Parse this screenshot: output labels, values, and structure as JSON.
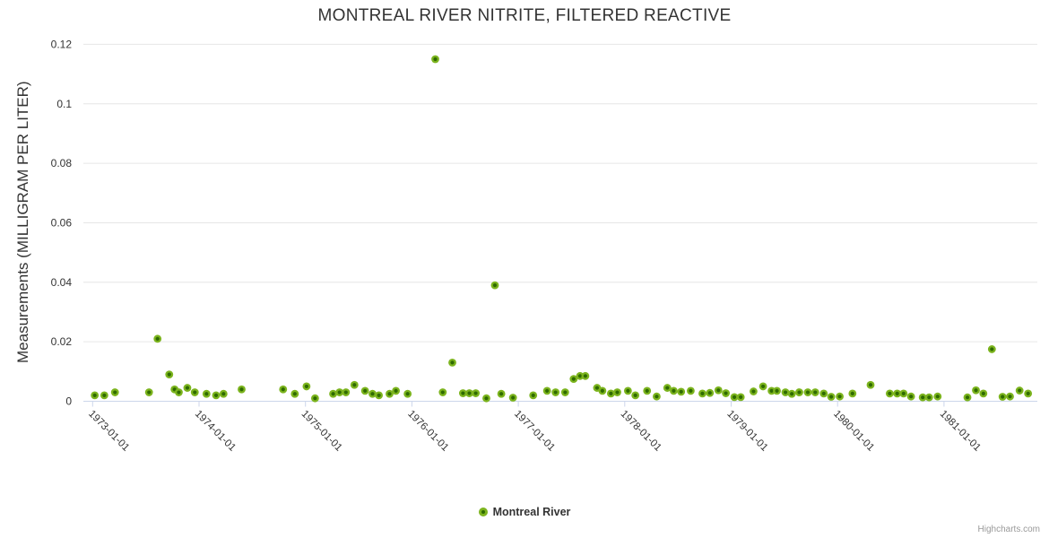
{
  "credit": "Highcharts.com",
  "colors": {
    "point": "#7CB41E",
    "point_center": "#2F6B00",
    "grid": "#E6E6E6",
    "axis": "#CCD6EB",
    "label_text": "#333333",
    "credit_text": "#999999",
    "background": "#FFFFFF"
  },
  "chart_data": {
    "type": "scatter",
    "title": "MONTREAL RIVER NITRITE, FILTERED REACTIVE",
    "xlabel": "",
    "ylabel": "Measurements (MILLIGRAM PER LITER)",
    "grid": "horizontal",
    "legend_position": "bottom-center",
    "x_encoding": "decimal-year",
    "xlim": [
      1972.9,
      1981.9
    ],
    "ylim": [
      0,
      0.12
    ],
    "x_axis": {
      "tick_labels": [
        "1973-01-01",
        "1974-01-01",
        "1975-01-01",
        "1976-01-01",
        "1977-01-01",
        "1978-01-01",
        "1979-01-01",
        "1980-01-01",
        "1981-01-01"
      ],
      "tick_years": [
        1973,
        1974,
        1975,
        1976,
        1977,
        1978,
        1979,
        1980,
        1981
      ],
      "label_rotation_deg": 45
    },
    "y_axis": {
      "ticks": [
        0,
        0.02,
        0.04,
        0.06,
        0.08,
        0.1,
        0.12
      ],
      "tick_labels": [
        "0",
        "0.02",
        "0.04",
        "0.06",
        "0.08",
        "0.1",
        "0.12"
      ]
    },
    "series": [
      {
        "name": "Montreal River",
        "points": [
          [
            1973.02,
            0.002
          ],
          [
            1973.11,
            0.002
          ],
          [
            1973.21,
            0.003
          ],
          [
            1973.53,
            0.003
          ],
          [
            1973.61,
            0.021
          ],
          [
            1973.72,
            0.009
          ],
          [
            1973.77,
            0.004
          ],
          [
            1973.81,
            0.003
          ],
          [
            1973.89,
            0.0045
          ],
          [
            1973.96,
            0.003
          ],
          [
            1974.07,
            0.0025
          ],
          [
            1974.16,
            0.002
          ],
          [
            1974.23,
            0.0025
          ],
          [
            1974.4,
            0.004
          ],
          [
            1974.79,
            0.004
          ],
          [
            1974.9,
            0.0025
          ],
          [
            1975.01,
            0.005
          ],
          [
            1975.09,
            0.001
          ],
          [
            1975.26,
            0.0025
          ],
          [
            1975.32,
            0.003
          ],
          [
            1975.38,
            0.003
          ],
          [
            1975.46,
            0.0055
          ],
          [
            1975.56,
            0.0035
          ],
          [
            1975.63,
            0.0025
          ],
          [
            1975.69,
            0.002
          ],
          [
            1975.79,
            0.0025
          ],
          [
            1975.85,
            0.0035
          ],
          [
            1975.96,
            0.0025
          ],
          [
            1976.22,
            0.115
          ],
          [
            1976.29,
            0.003
          ],
          [
            1976.38,
            0.013
          ],
          [
            1976.48,
            0.0027
          ],
          [
            1976.54,
            0.0027
          ],
          [
            1976.6,
            0.0027
          ],
          [
            1976.7,
            0.001
          ],
          [
            1976.78,
            0.039
          ],
          [
            1976.84,
            0.0025
          ],
          [
            1976.95,
            0.0012
          ],
          [
            1977.14,
            0.002
          ],
          [
            1977.27,
            0.0035
          ],
          [
            1977.35,
            0.003
          ],
          [
            1977.44,
            0.003
          ],
          [
            1977.52,
            0.0075
          ],
          [
            1977.58,
            0.0085
          ],
          [
            1977.63,
            0.0085
          ],
          [
            1977.74,
            0.0045
          ],
          [
            1977.79,
            0.0035
          ],
          [
            1977.87,
            0.0026
          ],
          [
            1977.93,
            0.003
          ],
          [
            1978.03,
            0.0035
          ],
          [
            1978.1,
            0.002
          ],
          [
            1978.21,
            0.0035
          ],
          [
            1978.3,
            0.0016
          ],
          [
            1978.4,
            0.0045
          ],
          [
            1978.46,
            0.0035
          ],
          [
            1978.53,
            0.0032
          ],
          [
            1978.62,
            0.0035
          ],
          [
            1978.73,
            0.0026
          ],
          [
            1978.8,
            0.0028
          ],
          [
            1978.88,
            0.0037
          ],
          [
            1978.95,
            0.0027
          ],
          [
            1979.03,
            0.0014
          ],
          [
            1979.09,
            0.0014
          ],
          [
            1979.21,
            0.0033
          ],
          [
            1979.3,
            0.005
          ],
          [
            1979.38,
            0.0035
          ],
          [
            1979.43,
            0.0035
          ],
          [
            1979.51,
            0.003
          ],
          [
            1979.57,
            0.0025
          ],
          [
            1979.64,
            0.003
          ],
          [
            1979.72,
            0.003
          ],
          [
            1979.79,
            0.003
          ],
          [
            1979.87,
            0.0026
          ],
          [
            1979.94,
            0.0015
          ],
          [
            1980.02,
            0.0016
          ],
          [
            1980.14,
            0.0026
          ],
          [
            1980.31,
            0.0055
          ],
          [
            1980.49,
            0.0026
          ],
          [
            1980.56,
            0.0026
          ],
          [
            1980.62,
            0.0026
          ],
          [
            1980.69,
            0.0016
          ],
          [
            1980.8,
            0.0013
          ],
          [
            1980.86,
            0.0013
          ],
          [
            1980.94,
            0.0016
          ],
          [
            1981.22,
            0.0013
          ],
          [
            1981.3,
            0.0037
          ],
          [
            1981.37,
            0.0026
          ],
          [
            1981.45,
            0.0175
          ],
          [
            1981.55,
            0.0015
          ],
          [
            1981.62,
            0.0016
          ],
          [
            1981.71,
            0.0036
          ],
          [
            1981.79,
            0.0026
          ]
        ]
      }
    ]
  }
}
